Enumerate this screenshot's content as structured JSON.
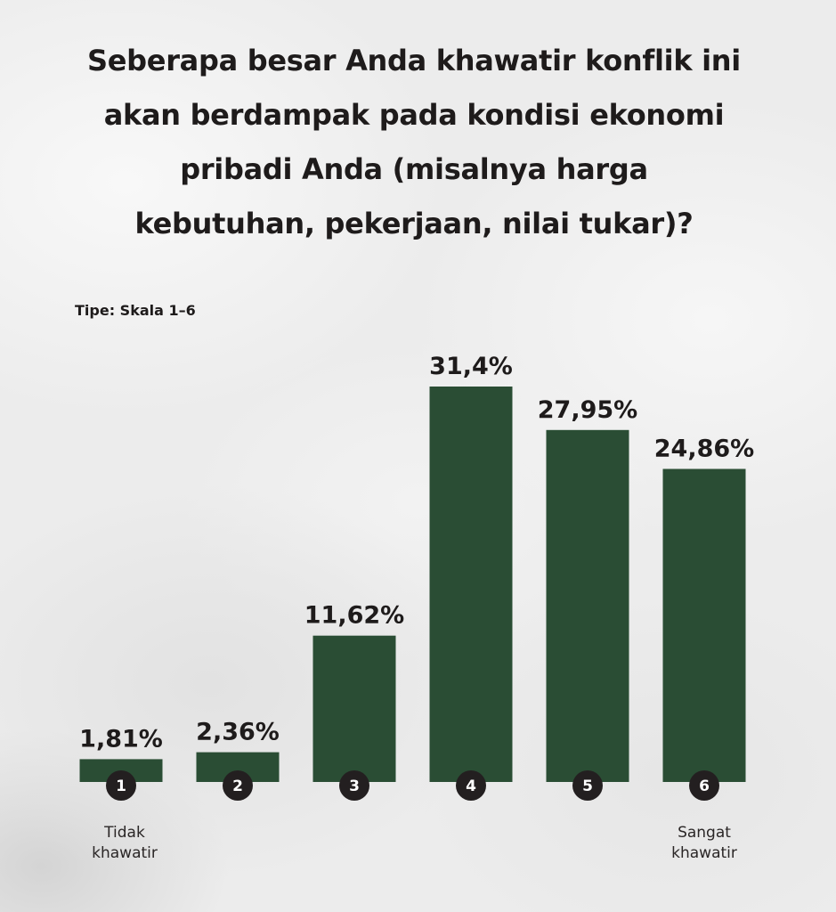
{
  "title": "Seberapa besar Anda khawatir konflik ini akan berdampak pada kondisi ekonomi pribadi Anda (misalnya harga kebutuhan, pekerjaan, nilai tukar)?",
  "title_lines": [
    "Seberapa besar Anda khawatir konflik ini",
    "akan berdampak pada kondisi ekonomi",
    "pribadi Anda (misalnya harga",
    "kebutuhan, pekerjaan, nilai tukar)?"
  ],
  "type_label": "Tipe: Skala 1–6",
  "colors": {
    "bar": "#2a4d34",
    "text": "#1e1b1b",
    "badge": "#231f20",
    "badge_text": "#ffffff"
  },
  "chart_data": {
    "type": "bar",
    "categories": [
      "1",
      "2",
      "3",
      "4",
      "5",
      "6"
    ],
    "values": [
      1.81,
      2.36,
      11.62,
      31.4,
      27.95,
      24.86
    ],
    "value_labels": [
      "1,81%",
      "2,36%",
      "11,62%",
      "31,4%",
      "27,95%",
      "24,86%"
    ],
    "ylim": [
      0,
      35
    ],
    "grid": false,
    "low_anchor": "Tidak khawatir",
    "low_anchor_lines": [
      "Tidak",
      "khawatir"
    ],
    "high_anchor": "Sangat khawatir",
    "high_anchor_lines": [
      "Sangat",
      "khawatir"
    ]
  }
}
